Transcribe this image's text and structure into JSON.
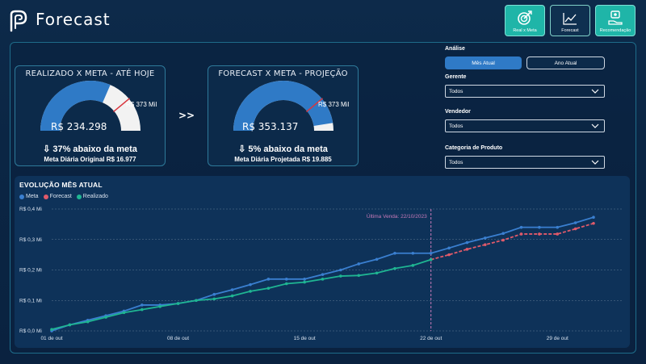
{
  "app": {
    "title": "Forecast"
  },
  "nav": [
    {
      "label": "Real x Meta",
      "icon": "target-icon",
      "state": "active"
    },
    {
      "label": "Forecast",
      "icon": "line-chart-icon",
      "state": "outline"
    },
    {
      "label": "Recomendação",
      "icon": "hand-money-icon",
      "state": "active"
    }
  ],
  "gauges": [
    {
      "title": "REALIZADO X META - ATÉ HOJE",
      "value": "R$ 234.298",
      "target": "R$ 373 Mil",
      "fill_fraction": 0.63,
      "status": "⇩ 37% abaixo da meta",
      "daily": "Meta Diária Original R$ 16.977"
    },
    {
      "title": "FORECAST X META - PROJEÇÃO",
      "value": "R$ 353.137",
      "target": "R$ 373 Mil",
      "fill_fraction": 0.95,
      "status": "⇩ 5% abaixo da meta",
      "daily": "Meta Diária Projetada R$ 19.885"
    }
  ],
  "arrows": ">>",
  "filters": {
    "analysis_label": "Análise",
    "period_options": [
      "Mês Atual",
      "Ano Atual"
    ],
    "period_selected": "Mês Atual",
    "gerente_label": "Gerente",
    "gerente_value": "Todos",
    "vendedor_label": "Vendedor",
    "vendedor_value": "Todos",
    "categoria_label": "Categoria de Produto",
    "categoria_value": "Todos"
  },
  "colors": {
    "meta": "#3a7fd0",
    "forecast": "#e05a6a",
    "realizado": "#1fb592",
    "gauge_fill": "#2f7ac6",
    "gauge_rest": "#f2f2f2",
    "target_marker": "#d9363e",
    "annotation": "#c87ab8"
  },
  "chart_data": {
    "type": "line",
    "title": "EVOLUÇÃO MÊS ATUAL",
    "x_labels": [
      "01 de out",
      "08 de out",
      "15 de out",
      "22 de out",
      "29 de out"
    ],
    "x_range": [
      1,
      31
    ],
    "y_ticks": [
      "R$ 0,0 Mi",
      "R$ 0,1 Mi",
      "R$ 0,2 Mi",
      "R$ 0,3 Mi",
      "R$ 0,4 Mi"
    ],
    "ylim": [
      0,
      0.4
    ],
    "annotation": {
      "day": 22,
      "label": "Última Venda: 22/10/2023"
    },
    "grid": true,
    "legend_position": "top-left",
    "series": [
      {
        "name": "Meta",
        "x": [
          1,
          2,
          3,
          4,
          5,
          6,
          7,
          8,
          9,
          10,
          11,
          12,
          13,
          14,
          15,
          16,
          17,
          18,
          19,
          20,
          21,
          22,
          23,
          24,
          25,
          26,
          27,
          28,
          29,
          30,
          31
        ],
        "values": [
          0.0,
          0.02,
          0.035,
          0.05,
          0.065,
          0.085,
          0.085,
          0.09,
          0.1,
          0.12,
          0.135,
          0.152,
          0.17,
          0.17,
          0.17,
          0.185,
          0.2,
          0.22,
          0.235,
          0.255,
          0.255,
          0.255,
          0.272,
          0.29,
          0.305,
          0.32,
          0.34,
          0.34,
          0.34,
          0.355,
          0.373
        ]
      },
      {
        "name": "Forecast",
        "x": [
          22,
          23,
          24,
          25,
          26,
          27,
          28,
          29,
          30,
          31
        ],
        "values": [
          0.234,
          0.25,
          0.268,
          0.283,
          0.298,
          0.318,
          0.318,
          0.318,
          0.335,
          0.353
        ]
      },
      {
        "name": "Realizado",
        "x": [
          1,
          2,
          3,
          4,
          5,
          6,
          7,
          8,
          9,
          10,
          11,
          12,
          13,
          14,
          15,
          16,
          17,
          18,
          19,
          20,
          21,
          22
        ],
        "values": [
          0.005,
          0.02,
          0.03,
          0.045,
          0.06,
          0.07,
          0.08,
          0.09,
          0.1,
          0.105,
          0.115,
          0.13,
          0.14,
          0.155,
          0.16,
          0.17,
          0.18,
          0.182,
          0.19,
          0.205,
          0.215,
          0.234
        ]
      }
    ]
  }
}
